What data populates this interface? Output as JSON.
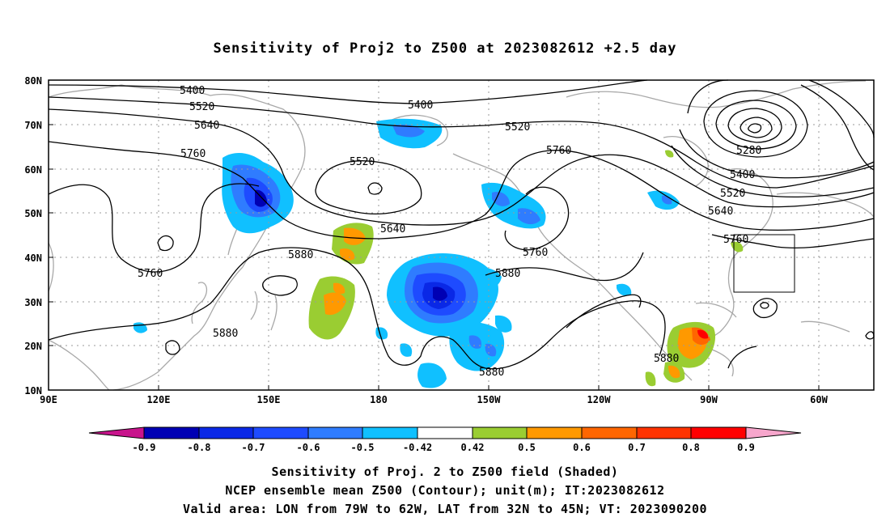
{
  "title": "Sensitivity of Proj2 to Z500 at 2023082612 +2.5 day",
  "lat_labels": [
    "80N",
    "70N",
    "60N",
    "50N",
    "40N",
    "30N",
    "20N",
    "10N"
  ],
  "lon_labels": [
    "90E",
    "120E",
    "150E",
    "180",
    "150W",
    "120W",
    "90W",
    "60W"
  ],
  "colorbar": {
    "labels": [
      "-0.9",
      "-0.8",
      "-0.7",
      "-0.6",
      "-0.5",
      "-0.42",
      "0.42",
      "0.5",
      "0.6",
      "0.7",
      "0.8",
      "0.9"
    ],
    "colors": {
      "below_min": "#c8148c",
      "bins": [
        "#0000b4",
        "#0a28e6",
        "#1e4bff",
        "#2f7cff",
        "#10c0ff",
        "#ffffff",
        "#9acd32",
        "#ff9900",
        "#ff6600",
        "#ff3300",
        "#ff0000"
      ],
      "above_max": "#f7a6cc"
    }
  },
  "contour_labels": {
    "c5400a": "5400",
    "c5400b": "5400",
    "c5400c": "5400",
    "c5520a": "5520",
    "c5520b": "5520",
    "c5520c": "5520",
    "c5520d": "5520",
    "c5640a": "5640",
    "c5640b": "5640",
    "c5640c": "5640",
    "c5760a": "5760",
    "c5760b": "5760",
    "c5760c": "5760",
    "c5760d": "5760",
    "c5880a": "5880",
    "c5880b": "5880",
    "c5880c": "5880",
    "c5880d": "5880",
    "c5880e": "5880",
    "c5280": "5280"
  },
  "captions": {
    "line1": "Sensitivity of Proj. 2 to Z500 field (Shaded)",
    "line2": "NCEP ensemble mean Z500 (Contour); unit(m); IT:2023082612",
    "line3": "Valid area: LON from 79W to 62W, LAT from 32N to 45N; VT: 2023090200"
  },
  "valid_area": {
    "lon_from": "79W",
    "lon_to": "62W",
    "lat_from": "32N",
    "lat_to": "45N"
  }
}
